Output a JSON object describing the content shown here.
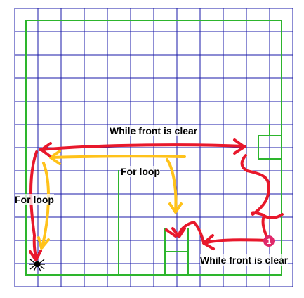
{
  "labels": {
    "top_loop": "While front is clear",
    "middle_loop": "For loop",
    "left_loop": "For loop",
    "bottom_loop": "While front is clear"
  },
  "markers": {
    "start_number": "1"
  },
  "colors": {
    "grid": "#1a1aa8",
    "walls": "#2db52d",
    "red_path": "#e8182c",
    "yellow_path": "#ffc21a",
    "start_marker": "#e0286a",
    "text": "#000000"
  },
  "icons": {
    "start": "numbered-circle",
    "goal": "spider-icon"
  }
}
